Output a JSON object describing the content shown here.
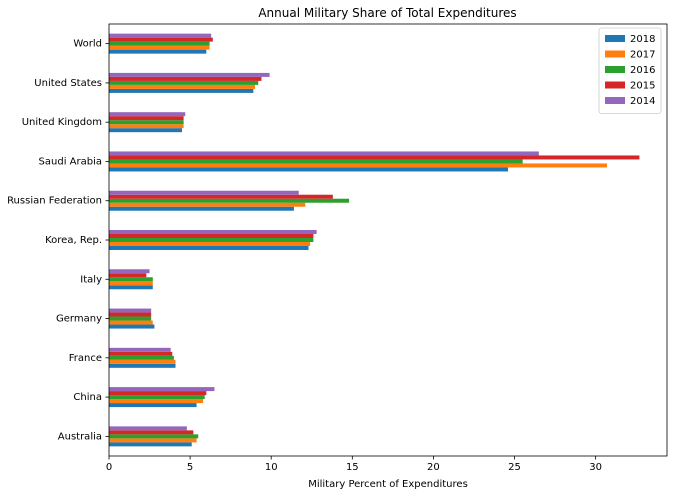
{
  "chart_data": {
    "type": "bar",
    "orientation": "horizontal",
    "title": "Annual Military Share of Total Expenditures",
    "xlabel": "Military Percent of Expenditures",
    "ylabel": "",
    "xlim": [
      0,
      34.4
    ],
    "xticks": [
      0,
      5,
      10,
      15,
      20,
      25,
      30
    ],
    "grid": false,
    "legend_position": "top-right",
    "categories": [
      "Australia",
      "China",
      "France",
      "Germany",
      "Italy",
      "Korea, Rep.",
      "Russian Federation",
      "Saudi Arabia",
      "United Kingdom",
      "United States",
      "World"
    ],
    "series": [
      {
        "name": "2018",
        "color": "#1f77b4",
        "values": [
          5.1,
          5.4,
          4.1,
          2.8,
          2.7,
          12.3,
          11.4,
          24.6,
          4.5,
          8.9,
          6.0
        ]
      },
      {
        "name": "2017",
        "color": "#ff7f0e",
        "values": [
          5.4,
          5.8,
          4.1,
          2.7,
          2.7,
          12.4,
          12.1,
          30.7,
          4.6,
          9.0,
          6.2
        ]
      },
      {
        "name": "2016",
        "color": "#2ca02c",
        "values": [
          5.5,
          5.9,
          4.0,
          2.6,
          2.7,
          12.6,
          14.8,
          25.5,
          4.6,
          9.2,
          6.2
        ]
      },
      {
        "name": "2015",
        "color": "#d62728",
        "values": [
          5.2,
          6.0,
          3.9,
          2.6,
          2.3,
          12.6,
          13.8,
          32.7,
          4.6,
          9.4,
          6.4
        ]
      },
      {
        "name": "2014",
        "color": "#9467bd",
        "values": [
          4.8,
          6.5,
          3.8,
          2.6,
          2.5,
          12.8,
          11.7,
          26.5,
          4.7,
          9.9,
          6.3
        ]
      }
    ]
  }
}
